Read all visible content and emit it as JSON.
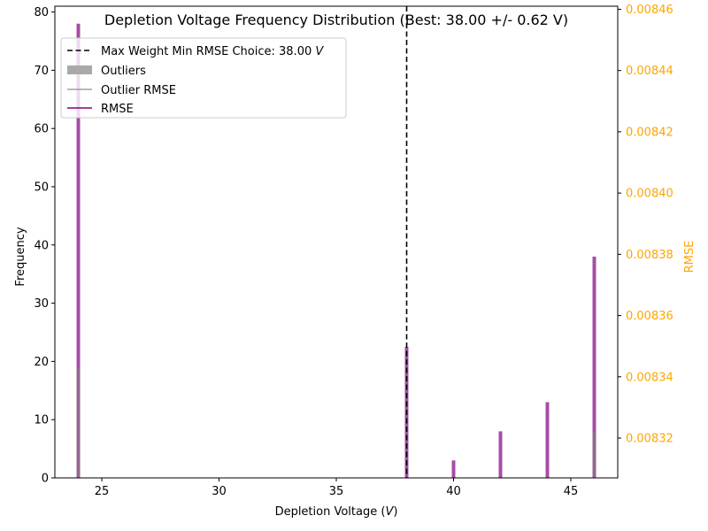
{
  "chart_data": {
    "type": "bar",
    "title": "Depletion Voltage Frequency Distribution (Best: 38.00 +/- 0.62 V)",
    "xlabel": "Depletion Voltage (",
    "xlabel_unit": "V",
    "xlabel_close": ")",
    "ylabel": "Frequency",
    "ylabel_right": "RMSE",
    "xlim": [
      23,
      47
    ],
    "ylim": [
      0,
      81
    ],
    "ylim_right": [
      0.008307,
      0.008461
    ],
    "xticks": [
      25,
      30,
      35,
      40,
      45
    ],
    "yticks": [
      0,
      10,
      20,
      30,
      40,
      50,
      60,
      70,
      80
    ],
    "yticks_right": [
      "0.00832",
      "0.00834",
      "0.00836",
      "0.00838",
      "0.00840",
      "0.00842",
      "0.00844",
      "0.00846"
    ],
    "yticks_right_values": [
      0.00832,
      0.00834,
      0.00836,
      0.00838,
      0.0084,
      0.00842,
      0.00844,
      0.00846
    ],
    "bar_width": 0.15,
    "best_line_x": 38.0,
    "series": [
      {
        "name": "RMSE",
        "color": "#800080",
        "x": [
          24,
          38,
          40,
          42,
          44,
          46
        ],
        "values": [
          78,
          22.5,
          3,
          8,
          13,
          38
        ]
      },
      {
        "name": "Outliers",
        "color": "#808080",
        "x": [
          24,
          46
        ],
        "values": [
          19,
          8
        ]
      }
    ],
    "legend": {
      "position": "top-left",
      "entries": [
        {
          "label": "Max Weight Min RMSE Choice: 38.00 ",
          "label_unit": "V",
          "style": "dashed",
          "color": "#000000"
        },
        {
          "label": "Outliers",
          "style": "patch",
          "color": "#a9a9a9"
        },
        {
          "label": "Outlier RMSE",
          "style": "line",
          "color": "#a0a0a0"
        },
        {
          "label": "RMSE",
          "style": "line",
          "color": "#800080"
        }
      ]
    }
  }
}
